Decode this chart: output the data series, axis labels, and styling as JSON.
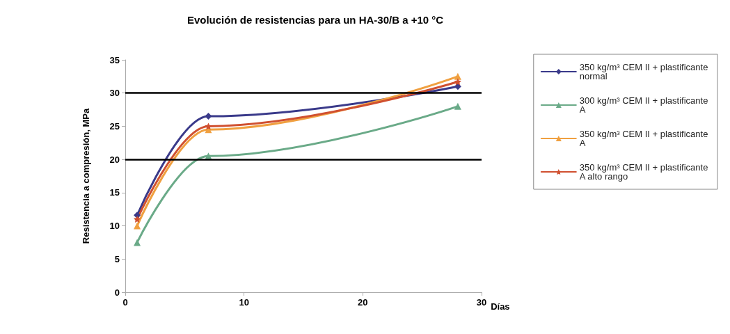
{
  "chart_data": {
    "type": "line",
    "title": "Evolución de resistencias para un HA-30/B a +10 °C",
    "xlabel": "Días",
    "ylabel": "Resistencia a compresión, MPa",
    "xlim": [
      0,
      30
    ],
    "xticks": [
      0,
      10,
      20,
      30
    ],
    "ylim": [
      0,
      35
    ],
    "yticks": [
      0,
      5,
      10,
      15,
      20,
      25,
      30,
      35
    ],
    "grid": false,
    "legend": "right",
    "line_style": "solid",
    "ref_lines": [
      {
        "axis": "y",
        "value": 20,
        "color": "#000000"
      },
      {
        "axis": "y",
        "value": 30,
        "color": "#000000"
      }
    ],
    "series": [
      {
        "name": "350 kg/m³ CEM II + plastificante normal",
        "color": "#3a3a8a",
        "marker": "diamond",
        "x": [
          1,
          7,
          28
        ],
        "values": [
          11.6,
          26.5,
          31
        ]
      },
      {
        "name": "300 kg/m³ CEM II + plastificante A",
        "color": "#6aaa88",
        "marker": "triangle",
        "x": [
          1,
          7,
          28
        ],
        "values": [
          7.5,
          20.5,
          28
        ]
      },
      {
        "name": "350 kg/m³ CEM II + plastificante A",
        "color": "#f0a040",
        "marker": "triangle",
        "x": [
          1,
          7,
          28
        ],
        "values": [
          10,
          24.5,
          32.5
        ]
      },
      {
        "name": "350 kg/m³ CEM II + plastificante A alto rango",
        "color": "#d05030",
        "marker": "star",
        "x": [
          1,
          7,
          28
        ],
        "values": [
          11,
          25,
          31.7
        ]
      }
    ]
  }
}
